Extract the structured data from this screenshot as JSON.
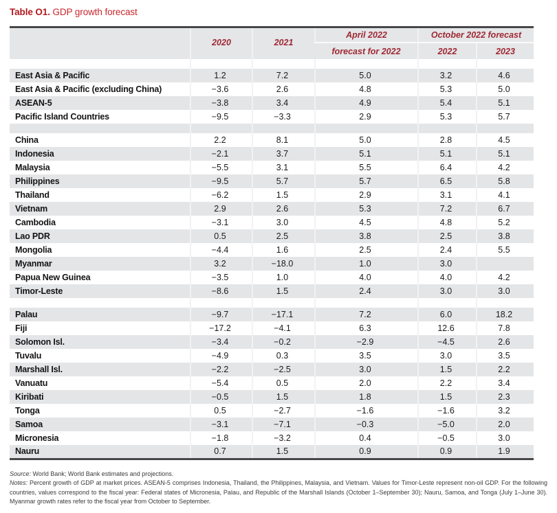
{
  "title": {
    "label": "Table O1.",
    "text": " GDP growth forecast"
  },
  "table": {
    "header": {
      "col_2020": "2020",
      "col_2021": "2021",
      "april_line1": "April 2022",
      "april_line2": "forecast for 2022",
      "october": "October 2022 forecast",
      "oct_2022": "2022",
      "oct_2023": "2023"
    },
    "rows": [
      {
        "label": "",
        "values": [
          "",
          "",
          "",
          "",
          ""
        ],
        "spacer": true
      },
      {
        "label": "East Asia & Pacific",
        "values": [
          "1.2",
          "7.2",
          "5.0",
          "3.2",
          "4.6"
        ]
      },
      {
        "label": "East Asia & Pacific (excluding China)",
        "values": [
          "−3.6",
          "2.6",
          "4.8",
          "5.3",
          "5.0"
        ]
      },
      {
        "label": "ASEAN-5",
        "values": [
          "−3.8",
          "3.4",
          "4.9",
          "5.4",
          "5.1"
        ]
      },
      {
        "label": "Pacific Island Countries",
        "values": [
          "−9.5",
          "−3.3",
          "2.9",
          "5.3",
          "5.7"
        ]
      },
      {
        "label": "",
        "values": [
          "",
          "",
          "",
          "",
          ""
        ],
        "spacer": true
      },
      {
        "label": "China",
        "values": [
          "2.2",
          "8.1",
          "5.0",
          "2.8",
          "4.5"
        ]
      },
      {
        "label": "Indonesia",
        "values": [
          "−2.1",
          "3.7",
          "5.1",
          "5.1",
          "5.1"
        ]
      },
      {
        "label": "Malaysia",
        "values": [
          "−5.5",
          "3.1",
          "5.5",
          "6.4",
          "4.2"
        ]
      },
      {
        "label": "Philippines",
        "values": [
          "−9.5",
          "5.7",
          "5.7",
          "6.5",
          "5.8"
        ]
      },
      {
        "label": "Thailand",
        "values": [
          "−6.2",
          "1.5",
          "2.9",
          "3.1",
          "4.1"
        ]
      },
      {
        "label": "Vietnam",
        "values": [
          "2.9",
          "2.6",
          "5.3",
          "7.2",
          "6.7"
        ]
      },
      {
        "label": "Cambodia",
        "values": [
          "−3.1",
          "3.0",
          "4.5",
          "4.8",
          "5.2"
        ]
      },
      {
        "label": "Lao PDR",
        "values": [
          "0.5",
          "2.5",
          "3.8",
          "2.5",
          "3.8"
        ]
      },
      {
        "label": "Mongolia",
        "values": [
          "−4.4",
          "1.6",
          "2.5",
          "2.4",
          "5.5"
        ]
      },
      {
        "label": "Myanmar",
        "values": [
          "3.2",
          "−18.0",
          "1.0",
          "3.0",
          ""
        ]
      },
      {
        "label": "Papua New Guinea",
        "values": [
          "−3.5",
          "1.0",
          "4.0",
          "4.0",
          "4.2"
        ]
      },
      {
        "label": "Timor-Leste",
        "values": [
          "−8.6",
          "1.5",
          "2.4",
          "3.0",
          "3.0"
        ]
      },
      {
        "label": "",
        "values": [
          "",
          "",
          "",
          "",
          ""
        ],
        "spacer": true
      },
      {
        "label": "Palau",
        "values": [
          "−9.7",
          "−17.1",
          "7.2",
          "6.0",
          "18.2"
        ]
      },
      {
        "label": "Fiji",
        "values": [
          "−17.2",
          "−4.1",
          "6.3",
          "12.6",
          "7.8"
        ]
      },
      {
        "label": "Solomon Isl.",
        "values": [
          "−3.4",
          "−0.2",
          "−2.9",
          "−4.5",
          "2.6"
        ]
      },
      {
        "label": "Tuvalu",
        "values": [
          "−4.9",
          "0.3",
          "3.5",
          "3.0",
          "3.5"
        ]
      },
      {
        "label": "Marshall Isl.",
        "values": [
          "−2.2",
          "−2.5",
          "3.0",
          "1.5",
          "2.2"
        ]
      },
      {
        "label": "Vanuatu",
        "values": [
          "−5.4",
          "0.5",
          "2.0",
          "2.2",
          "3.4"
        ]
      },
      {
        "label": "Kiribati",
        "values": [
          "−0.5",
          "1.5",
          "1.8",
          "1.5",
          "2.3"
        ]
      },
      {
        "label": "Tonga",
        "values": [
          "0.5",
          "−2.7",
          "−1.6",
          "−1.6",
          "3.2"
        ]
      },
      {
        "label": "Samoa",
        "values": [
          "−3.1",
          "−7.1",
          "−0.3",
          "−5.0",
          "2.0"
        ]
      },
      {
        "label": "Micronesia",
        "values": [
          "−1.8",
          "−3.2",
          "0.4",
          "−0.5",
          "3.0"
        ]
      },
      {
        "label": "Nauru",
        "values": [
          "0.7",
          "1.5",
          "0.9",
          "0.9",
          "1.9"
        ]
      }
    ]
  },
  "footnotes": {
    "source_label": "Source:",
    "source_text": " World Bank; World Bank estimates and projections.",
    "notes_label": "Notes:",
    "notes_text": " Percent growth of GDP at market prices. ASEAN-5 comprises Indonesia, Thailand, the Philippines, Malaysia, and Vietnam. Values for Timor-Leste represent non-oil GDP. For the following countries, values correspond to the fiscal year: Federal states of Micronesia, Palau, and Republic of the Marshall Islands (October 1–September 30); Nauru, Samoa, and Tonga (July 1–June 30). Myanmar growth rates refer to the fiscal year from October to September."
  },
  "colors": {
    "accent_red": "#b2191f",
    "header_text_red": "#9e2833",
    "header_bg": "#e5e6e8",
    "stripe_bg": "#e4e5e7",
    "border_dark": "#47474a"
  }
}
